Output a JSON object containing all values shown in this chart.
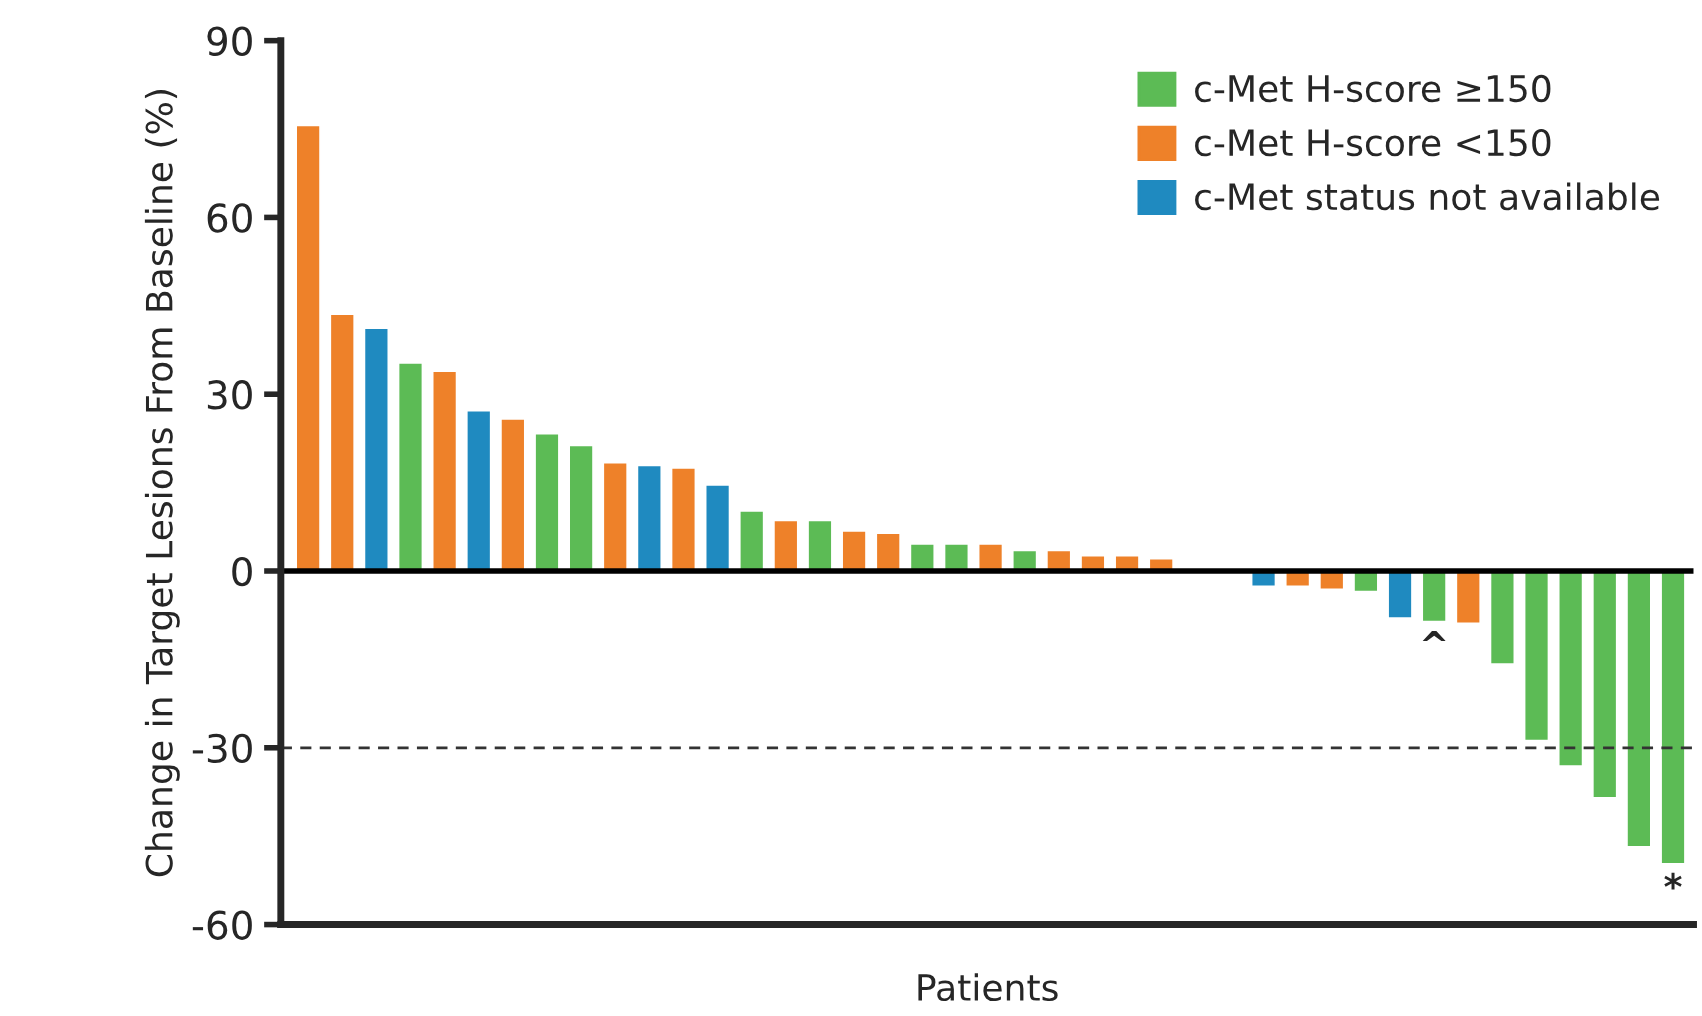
{
  "chart_data": {
    "type": "bar",
    "xlabel": "Patients",
    "ylabel": "Change in Target Lesions From Baseline (%)",
    "categories": [
      null,
      null,
      null,
      null,
      null,
      null,
      null,
      null,
      null,
      null,
      null,
      null,
      null,
      null,
      null,
      null,
      null,
      null,
      null,
      null,
      null,
      null,
      null,
      null,
      null,
      null,
      null,
      null,
      null,
      null,
      null,
      null,
      null,
      null,
      null,
      null,
      null,
      null,
      null,
      null,
      null
    ],
    "series": [
      {
        "name": "c-Met H-score ≥150",
        "color": "#5cbb55",
        "values": [
          null,
          null,
          null,
          35.3,
          null,
          null,
          null,
          23.3,
          21.3,
          null,
          null,
          null,
          null,
          10.2,
          null,
          8.6,
          null,
          null,
          4.6,
          4.6,
          null,
          3.5,
          null,
          null,
          null,
          null,
          null,
          null,
          null,
          null,
          null,
          -3.5,
          null,
          -8.6,
          null,
          -15.8,
          -28.8,
          -33.1,
          -38.5,
          -46.8,
          -49.7
        ],
        "value_labels": [
          null,
          null,
          null,
          null,
          null,
          null,
          null,
          null,
          null,
          null,
          null,
          null,
          null,
          null,
          null,
          null,
          null,
          null,
          null,
          null,
          null,
          null,
          null,
          null,
          null,
          null,
          null,
          null,
          null,
          null,
          null,
          null,
          null,
          "^",
          null,
          null,
          null,
          null,
          null,
          null,
          "*"
        ]
      },
      {
        "name": "c-Met H-score <150",
        "color": "#ee8129",
        "values": [
          75.6,
          43.6,
          null,
          null,
          33.9,
          null,
          25.8,
          null,
          null,
          18.4,
          null,
          17.5,
          null,
          null,
          8.6,
          null,
          6.8,
          6.4,
          null,
          null,
          4.6,
          null,
          3.5,
          2.6,
          2.6,
          2.1,
          null,
          null,
          null,
          -2.6,
          -3.1,
          null,
          null,
          null,
          -8.9,
          null,
          null,
          null,
          null,
          null,
          null
        ]
      },
      {
        "name": "c-Met status not available",
        "color": "#1f8ac0",
        "values": [
          null,
          null,
          41.2,
          null,
          null,
          27.2,
          null,
          null,
          null,
          null,
          17.9,
          null,
          14.6,
          null,
          null,
          null,
          null,
          null,
          null,
          null,
          null,
          null,
          null,
          null,
          null,
          null,
          null,
          null,
          -2.6,
          null,
          null,
          null,
          -8.0,
          null,
          null,
          null,
          null,
          null,
          null,
          null,
          null
        ]
      }
    ],
    "ylim": [
      -60,
      90
    ],
    "yticks": [
      -60,
      -30,
      0,
      30,
      60,
      90
    ],
    "ref_lines": [
      {
        "axis": "y",
        "value": 0,
        "line_style": "solid",
        "color": "#000000"
      },
      {
        "axis": "y",
        "value": -30,
        "line_style": "dashed",
        "color": "#333333"
      }
    ],
    "legend": "top right",
    "grid": false
  }
}
